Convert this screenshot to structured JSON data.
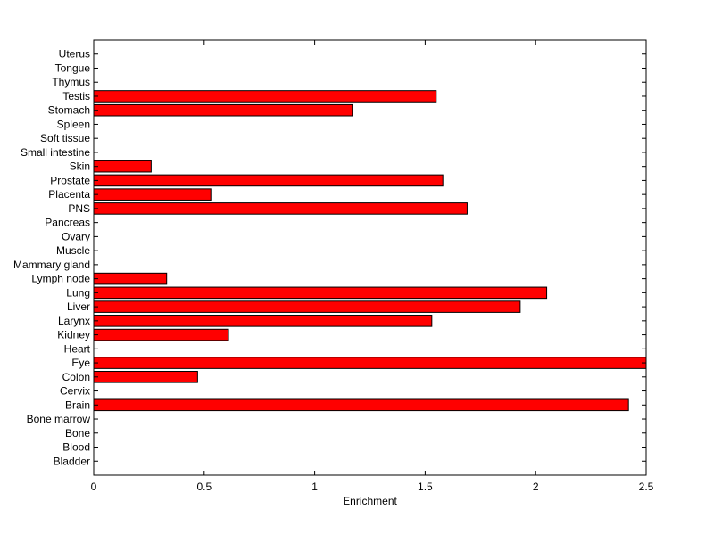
{
  "chart_data": {
    "type": "bar",
    "orientation": "horizontal",
    "xlabel": "Enrichment",
    "ylabel": "",
    "title": "",
    "xlim": [
      0,
      2.5
    ],
    "xticks": [
      0,
      0.5,
      1,
      1.5,
      2,
      2.5
    ],
    "xtick_labels": [
      "0",
      "0.5",
      "1",
      "1.5",
      "2",
      "2.5"
    ],
    "grid": false,
    "bar_color": "#ff0000",
    "edge_color": "#000000",
    "categories": [
      "Bladder",
      "Blood",
      "Bone",
      "Bone marrow",
      "Brain",
      "Cervix",
      "Colon",
      "Eye",
      "Heart",
      "Kidney",
      "Larynx",
      "Liver",
      "Lung",
      "Lymph node",
      "Mammary gland",
      "Muscle",
      "Ovary",
      "Pancreas",
      "PNS",
      "Placenta",
      "Prostate",
      "Skin",
      "Small intestine",
      "Soft tissue",
      "Spleen",
      "Stomach",
      "Testis",
      "Thymus",
      "Tongue",
      "Uterus"
    ],
    "values": [
      0,
      0,
      0,
      0,
      2.42,
      0,
      0.47,
      2.5,
      0,
      0.61,
      1.53,
      1.93,
      2.05,
      0.33,
      0,
      0,
      0,
      0,
      1.69,
      0.53,
      1.58,
      0.26,
      0,
      0,
      0,
      1.17,
      1.55,
      0,
      0,
      0
    ]
  }
}
